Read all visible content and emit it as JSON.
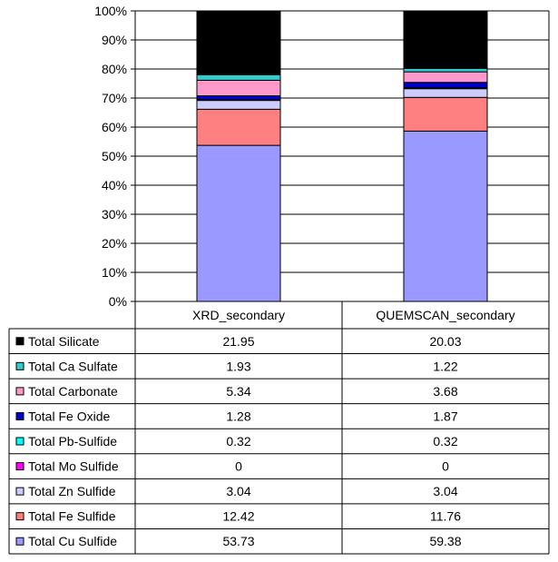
{
  "chart_data": {
    "type": "bar",
    "stacked": "percent",
    "categories": [
      "XRD_secondary",
      "QUEMSCAN_secondary"
    ],
    "y_ticks": [
      "0%",
      "10%",
      "20%",
      "30%",
      "40%",
      "50%",
      "60%",
      "70%",
      "80%",
      "90%",
      "100%"
    ],
    "ylim": [
      0,
      100
    ],
    "grid": true,
    "legend": "data-table-left",
    "series": [
      {
        "name": "Total Cu Sulfide",
        "color": "#9999ff",
        "values": [
          53.73,
          59.38
        ],
        "labels": [
          "53.73",
          "59.38"
        ]
      },
      {
        "name": "Total Fe Sulfide",
        "color": "#ff8080",
        "values": [
          12.42,
          11.76
        ],
        "labels": [
          "12.42",
          "11.76"
        ]
      },
      {
        "name": "Total Zn Sulfide",
        "color": "#ccccff",
        "values": [
          3.04,
          3.04
        ],
        "labels": [
          "3.04",
          "3.04"
        ]
      },
      {
        "name": "Total Mo Sulfide",
        "color": "#ff00ff",
        "values": [
          0,
          0
        ],
        "labels": [
          "0",
          "0"
        ]
      },
      {
        "name": "Total Pb-Sulfide",
        "color": "#00ffff",
        "values": [
          0.32,
          0.32
        ],
        "labels": [
          "0.32",
          "0.32"
        ]
      },
      {
        "name": "Total Fe Oxide",
        "color": "#0000cc",
        "values": [
          1.28,
          1.87
        ],
        "labels": [
          "1.28",
          "1.87"
        ]
      },
      {
        "name": "Total Carbonate",
        "color": "#ff99cc",
        "values": [
          5.34,
          3.68
        ],
        "labels": [
          "5.34",
          "3.68"
        ]
      },
      {
        "name": "Total Ca Sulfate",
        "color": "#33cccc",
        "values": [
          1.93,
          1.22
        ],
        "labels": [
          "1.93",
          "1.22"
        ]
      },
      {
        "name": "Total Silicate",
        "color": "#000000",
        "values": [
          21.95,
          20.03
        ],
        "labels": [
          "21.95",
          "20.03"
        ]
      }
    ]
  }
}
